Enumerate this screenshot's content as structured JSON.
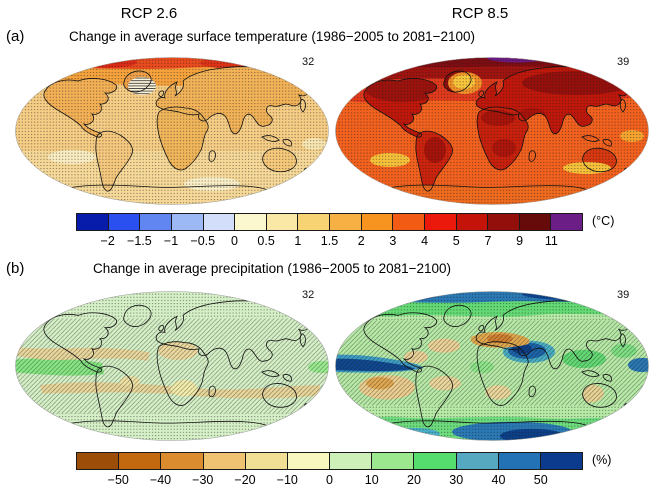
{
  "header": {
    "col_left": "RCP 2.6",
    "col_right": "RCP 8.5"
  },
  "panel_a": {
    "tag": "(a)",
    "title": "Change in average surface temperature (1986−2005 to 2081−2100)",
    "map_left": {
      "scenario": "RCP 2.6",
      "model_count": "32"
    },
    "map_right": {
      "scenario": "RCP 8.5",
      "model_count": "39"
    },
    "colorbar": {
      "unit": "(°C)",
      "ticks": [
        "−2",
        "−1.5",
        "−1",
        "−0.5",
        "0",
        "0.5",
        "1",
        "1.5",
        "2",
        "3",
        "4",
        "5",
        "7",
        "9",
        "11"
      ],
      "colors": [
        "#071cab",
        "#2b50f0",
        "#6186f2",
        "#9cb8f5",
        "#d2defa",
        "#fbf8cf",
        "#f9e8a6",
        "#f8d374",
        "#f7b043",
        "#f6941f",
        "#f25b13",
        "#ea190b",
        "#c41309",
        "#930f0b",
        "#670a0a",
        "#6c1e87"
      ]
    }
  },
  "panel_b": {
    "tag": "(b)",
    "title": "Change in average precipitation (1986−2005 to 2081−2100)",
    "map_left": {
      "scenario": "RCP 2.6",
      "model_count": "32"
    },
    "map_right": {
      "scenario": "RCP 8.5",
      "model_count": "39"
    },
    "colorbar": {
      "unit": "(%)",
      "ticks": [
        "−50",
        "−40",
        "−30",
        "−20",
        "−10",
        "0",
        "10",
        "20",
        "30",
        "40",
        "50"
      ],
      "colors": [
        "#9c4e08",
        "#c2680f",
        "#da8c2e",
        "#efc371",
        "#f0df94",
        "#f8f7c0",
        "#cdf0b8",
        "#9ce88e",
        "#55dd6e",
        "#55a8c0",
        "#2272b5",
        "#0c3a8c"
      ]
    }
  },
  "chart_data": [
    {
      "type": "heatmap",
      "subtype": "global-world-map-pair",
      "panel_label": "(a)",
      "title": "Change in average surface temperature (1986−2005 to 2081−2100)",
      "unit": "°C",
      "scenarios": [
        "RCP 2.6",
        "RCP 8.5"
      ],
      "n_models": [
        32,
        39
      ],
      "colorbar_tick_values": [
        -2,
        -1.5,
        -1,
        -0.5,
        0,
        0.5,
        1,
        1.5,
        2,
        3,
        4,
        5,
        7,
        9,
        11
      ],
      "colorbar_colors": [
        "#071cab",
        "#2b50f0",
        "#6186f2",
        "#9cb8f5",
        "#d2defa",
        "#fbf8cf",
        "#f9e8a6",
        "#f8d374",
        "#f7b043",
        "#f6941f",
        "#f25b13",
        "#ea190b",
        "#c41309",
        "#930f0b",
        "#670a0a",
        "#6c1e87"
      ],
      "legend_position": "below maps, horizontal",
      "patterns_depicted": {
        "rcp26": "mostly 0.5–2 °C warming (tan/orange); 2–4 °C over Arctic (orange/red top band); dense dot stippling over nearly the whole map; small hatched pale patch in subpolar North Atlantic south of Greenland; lighter 0–1 °C patches in Southern Ocean",
        "rcp85": "3–5 °C over oceans (orange-red), 5–7 °C over continents (dark red), 7–11+ °C in Arctic (very dark red with purple at top); yellow 1–2 °C cool patch in subpolar North Atlantic and Southern Ocean; dense dot stippling over whole map"
      }
    },
    {
      "type": "heatmap",
      "subtype": "global-world-map-pair",
      "panel_label": "(b)",
      "title": "Change in average precipitation (1986−2005 to 2081−2100)",
      "unit": "%",
      "scenarios": [
        "RCP 2.6",
        "RCP 8.5"
      ],
      "n_models": [
        32,
        39
      ],
      "colorbar_tick_values": [
        -50,
        -40,
        -30,
        -20,
        -10,
        0,
        10,
        20,
        30,
        40,
        50
      ],
      "colorbar_colors": [
        "#9c4e08",
        "#c2680f",
        "#da8c2e",
        "#efc371",
        "#f0df94",
        "#f8f7c0",
        "#cdf0b8",
        "#9ce88e",
        "#55dd6e",
        "#55a8c0",
        "#2272b5",
        "#0c3a8c"
      ],
      "legend_position": "below maps, horizontal",
      "patterns_depicted": {
        "rcp26": "small changes 0–10% (pale green) with brighter green equatorial Pacific band; drier −10 to −20% tan bands in the subtropics; diagonal hatching over most mid/low latitudes; dot stippling at high latitudes and equatorial Pacific",
        "rcp85": "wetting 20–50%+ (green to dark blue) at high latitudes, equatorial Pacific and Arabian Sea/Indian Ocean; drying 10–30% (tan/orange) in Mediterranean, subtropical Atlantic, southeast Pacific, southern Africa and Australia; dot stippling at high latitudes, diagonal hatching in transition zones"
      }
    }
  ]
}
